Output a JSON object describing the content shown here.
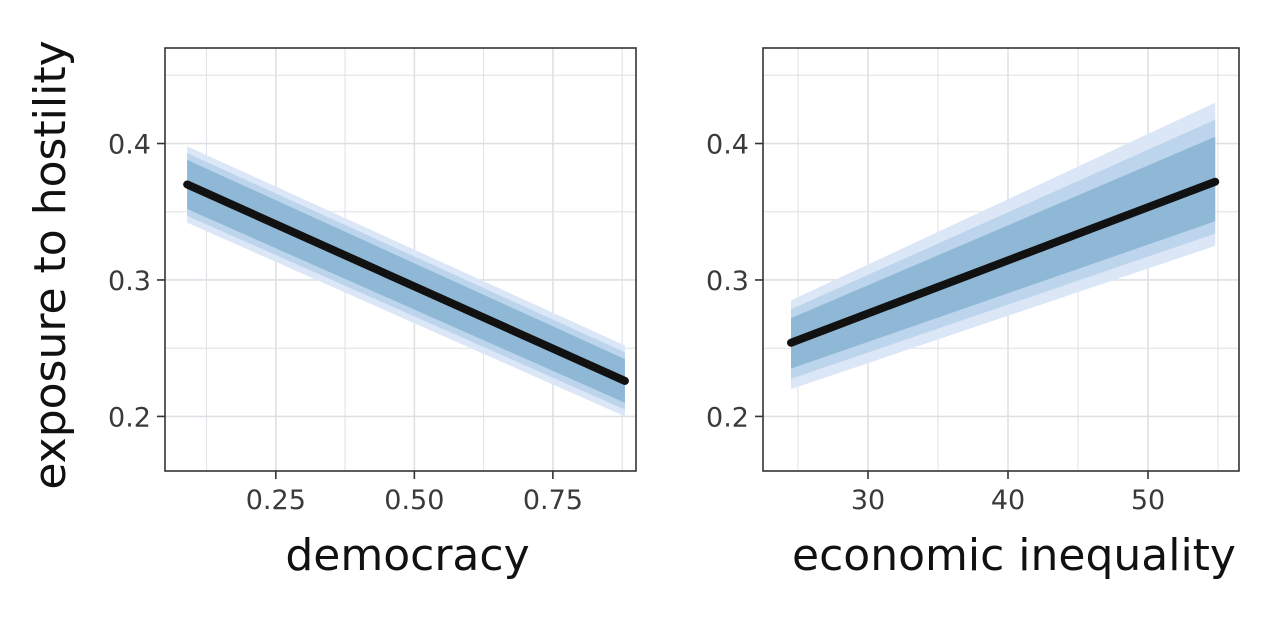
{
  "colors": {
    "background": "#ffffff",
    "grid": "#dde1e6",
    "panel_border": "#333333",
    "band_outer": "#dbe7f6",
    "band_mid": "#bcd5ec",
    "band_inner": "#8fb8d6",
    "line": "#111111",
    "text": "#3a3a3a"
  },
  "shared_ylabel": "exposure to hostility",
  "chart_data": [
    {
      "type": "line",
      "xlabel": "democracy",
      "ylabel": "exposure to hostility",
      "xlim": [
        0.05,
        0.9
      ],
      "ylim": [
        0.16,
        0.47
      ],
      "x_ticks": [
        0.25,
        0.5,
        0.75
      ],
      "x_tick_labels": [
        "0.25",
        "0.50",
        "0.75"
      ],
      "y_ticks": [
        0.2,
        0.3,
        0.4
      ],
      "y_tick_labels": [
        "0.2",
        "0.3",
        "0.4"
      ],
      "grid": true,
      "series": [
        {
          "x": [
            0.09,
            0.88
          ],
          "y": [
            0.37,
            0.226
          ],
          "ci_outer_lower": [
            0.342,
            0.2
          ],
          "ci_outer_upper": [
            0.398,
            0.252
          ],
          "ci_inner_lower": [
            0.352,
            0.21
          ],
          "ci_inner_upper": [
            0.388,
            0.242
          ]
        }
      ]
    },
    {
      "type": "line",
      "xlabel": "economic inequality",
      "ylabel": "exposure to hostility",
      "xlim": [
        22.5,
        56.5
      ],
      "ylim": [
        0.16,
        0.47
      ],
      "x_ticks": [
        30,
        40,
        50
      ],
      "x_tick_labels": [
        "30",
        "40",
        "50"
      ],
      "y_ticks": [
        0.2,
        0.3,
        0.4
      ],
      "y_tick_labels": [
        "0.2",
        "0.3",
        "0.4"
      ],
      "grid": true,
      "series": [
        {
          "x": [
            24.5,
            54.8
          ],
          "y": [
            0.254,
            0.372
          ],
          "ci_outer_lower": [
            0.22,
            0.325
          ],
          "ci_outer_upper": [
            0.285,
            0.43
          ],
          "ci_inner_lower": [
            0.235,
            0.343
          ],
          "ci_inner_upper": [
            0.272,
            0.405
          ]
        }
      ]
    }
  ]
}
